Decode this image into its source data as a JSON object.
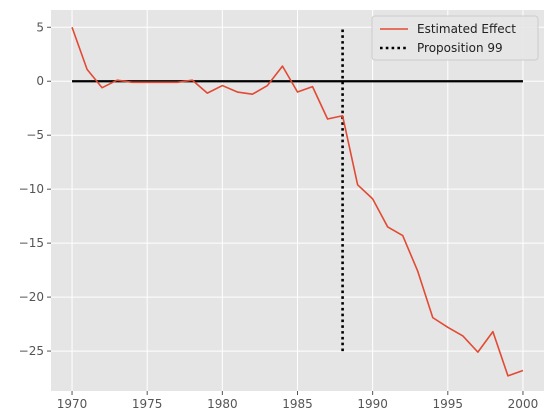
{
  "chart_data": {
    "type": "line",
    "title": "",
    "xlabel": "",
    "ylabel": "",
    "xlim": [
      1968.6,
      2001.4
    ],
    "ylim": [
      -28.7,
      6.6
    ],
    "xticks": [
      1970,
      1975,
      1980,
      1985,
      1990,
      1995,
      2000
    ],
    "yticks": [
      5,
      0,
      -5,
      -10,
      -15,
      -20,
      -25
    ],
    "xtick_labels": [
      "1970",
      "1975",
      "1980",
      "1985",
      "1990",
      "1995",
      "2000"
    ],
    "ytick_labels": [
      "5",
      "0",
      "−5",
      "−10",
      "−15",
      "−20",
      "−25"
    ],
    "grid": true,
    "legend_position": "top-right",
    "background": "#e5e5e5",
    "series": [
      {
        "name": "Estimated Effect",
        "color": "#e24a33",
        "style": "solid",
        "x": [
          1970,
          1971,
          1972,
          1973,
          1974,
          1975,
          1976,
          1977,
          1978,
          1979,
          1980,
          1981,
          1982,
          1983,
          1984,
          1985,
          1986,
          1987,
          1988,
          1989,
          1990,
          1991,
          1992,
          1993,
          1994,
          1995,
          1996,
          1997,
          1998,
          1999,
          2000
        ],
        "values": [
          5.0,
          1.1,
          -0.6,
          0.1,
          -0.1,
          -0.1,
          -0.1,
          -0.1,
          0.1,
          -1.1,
          -0.4,
          -1.0,
          -1.2,
          -0.4,
          1.4,
          -1.0,
          -0.5,
          -3.5,
          -3.2,
          -9.6,
          -10.9,
          -13.5,
          -14.3,
          -17.6,
          -21.9,
          -22.8,
          -23.6,
          -25.1,
          -23.2,
          -27.3,
          -26.8
        ]
      }
    ],
    "reference_lines": [
      {
        "orientation": "horizontal",
        "y": 0,
        "x_from": 1970,
        "x_to": 2000,
        "color": "#000000",
        "style": "solid"
      },
      {
        "name": "Proposition 99",
        "orientation": "vertical",
        "x": 1988,
        "y_from": -25,
        "y_to": 5,
        "color": "#000000",
        "style": "dotted"
      }
    ]
  }
}
